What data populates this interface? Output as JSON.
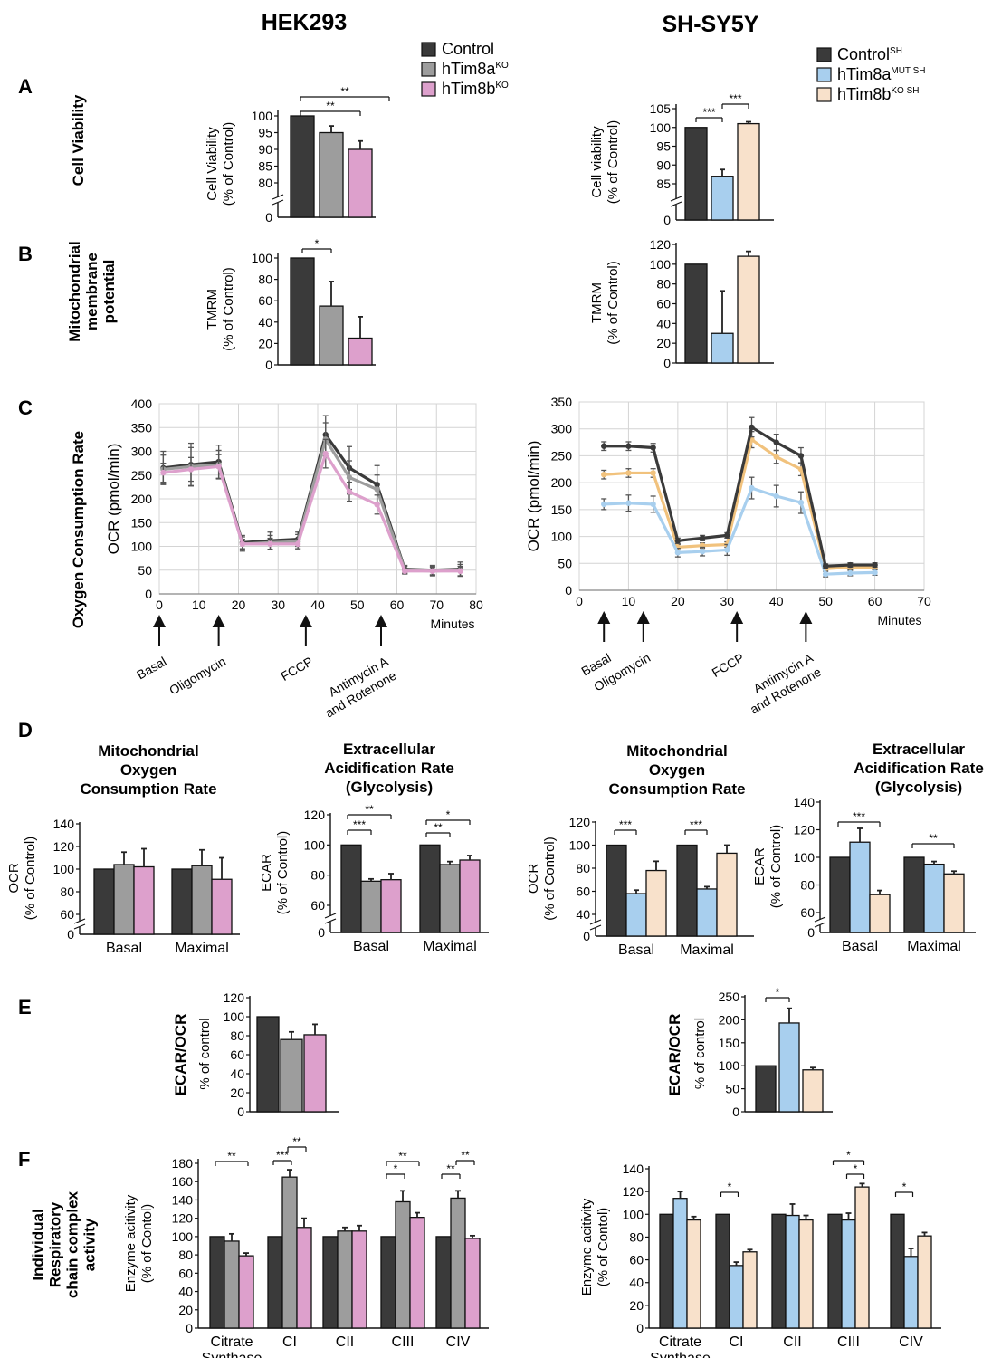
{
  "headers": {
    "left": "HEK293",
    "right": "SH-SY5Y"
  },
  "panels": {
    "A": "A",
    "B": "B",
    "C": "C",
    "D": "D",
    "E": "E",
    "F": "F"
  },
  "row_labels": {
    "A": "Cell Viability",
    "B": [
      "Mitochondrial",
      "membrane",
      "potential"
    ],
    "C": "Oxygen Consumption Rate",
    "F": [
      "Individual",
      "Respiratory",
      "chain complex",
      "activity"
    ]
  },
  "legend_left": [
    {
      "base": "Control",
      "sup": "",
      "color": "#3a3a3a"
    },
    {
      "base": "hTim8a",
      "sup": "KO",
      "color": "#9d9d9d"
    },
    {
      "base": "hTim8b",
      "sup": "KO",
      "color": "#dda0cc"
    }
  ],
  "legend_right": [
    {
      "base": "Control",
      "sup": "SH",
      "color": "#3a3a3a"
    },
    {
      "base": "hTim8a",
      "sup": "MUT SH",
      "color": "#a8cfee"
    },
    {
      "base": "hTim8b",
      "sup": "KO SH",
      "color": "#f8e1cb"
    }
  ],
  "colors": {
    "left": [
      "#3a3a3a",
      "#9d9d9d",
      "#dda0cc"
    ],
    "right": [
      "#3a3a3a",
      "#a8cfee",
      "#f8e1cb"
    ],
    "right_lines": [
      "#3a3a3a",
      "#a8cfee",
      "#f1c27d"
    ]
  },
  "ocr_axis": {
    "ylabel": "OCR (pmol/min)",
    "xlabel": "Minutes"
  },
  "arrows": [
    "Basal",
    "Oligomycin",
    "FCCP",
    [
      "Antimycin A",
      "and Rotenone"
    ]
  ],
  "d_titles": {
    "mito": [
      "Mitochondrial",
      "Oxygen",
      "Consumption Rate"
    ],
    "ecar": [
      "Extracellular",
      "Acidification Rate",
      "(Glycolysis)"
    ]
  },
  "chart_data": [
    {
      "id": "A_left",
      "type": "bar",
      "ylabel": [
        "Cell Viability",
        "(% of Control)"
      ],
      "ylim": [
        80,
        100
      ],
      "yticks": [
        80,
        85,
        90,
        95,
        100
      ],
      "axis_break": true,
      "values": [
        100,
        95,
        90
      ],
      "errors": [
        0,
        2,
        2.5
      ],
      "sig": [
        {
          "a": 0,
          "b": 2,
          "text": "**"
        },
        {
          "a": 0,
          "b": 1,
          "text": "**"
        }
      ]
    },
    {
      "id": "A_right",
      "type": "bar",
      "ylabel": [
        "Cell viability",
        "(% of Control)"
      ],
      "ylim": [
        85,
        105
      ],
      "yticks": [
        85,
        90,
        95,
        100,
        105
      ],
      "axis_break": true,
      "values": [
        100,
        87,
        101
      ],
      "errors": [
        0,
        1.8,
        0.5
      ],
      "sig": [
        {
          "a": 0,
          "b": 1,
          "text": "***"
        },
        {
          "a": 1,
          "b": 2,
          "text": "***"
        }
      ]
    },
    {
      "id": "B_left",
      "type": "bar",
      "ylabel": [
        "TMRM",
        "(% of Control)"
      ],
      "ylim": [
        0,
        100
      ],
      "yticks": [
        0,
        20,
        40,
        60,
        80,
        100
      ],
      "values": [
        100,
        55,
        25
      ],
      "errors": [
        0,
        23,
        20
      ],
      "sig": [
        {
          "a": 0,
          "b": 1,
          "text": "*"
        }
      ]
    },
    {
      "id": "B_right",
      "type": "bar",
      "ylabel": [
        "TMRM",
        "(% of Control)"
      ],
      "ylim": [
        0,
        120
      ],
      "yticks": [
        0,
        20,
        40,
        60,
        80,
        100,
        120
      ],
      "values": [
        100,
        30,
        108
      ],
      "errors": [
        0,
        43,
        5
      ],
      "sig": []
    },
    {
      "id": "C_left",
      "type": "line",
      "ylabel": "OCR (pmol/min)",
      "xlabel": "Minutes",
      "xlim": [
        0,
        80
      ],
      "ylim": [
        0,
        400
      ],
      "xticks": [
        0,
        10,
        20,
        30,
        40,
        50,
        60,
        70,
        80
      ],
      "yticks": [
        0,
        50,
        100,
        150,
        200,
        250,
        300,
        350,
        400
      ],
      "x": [
        1,
        8,
        15,
        21,
        28,
        35,
        42,
        48,
        55,
        62,
        69,
        76
      ],
      "series": [
        {
          "name": "Control",
          "values": [
            265,
            272,
            278,
            108,
            112,
            115,
            335,
            265,
            230,
            52,
            50,
            52
          ],
          "errors": [
            35,
            45,
            35,
            15,
            18,
            15,
            40,
            45,
            40,
            8,
            10,
            15
          ]
        },
        {
          "name": "hTim8a KO",
          "values": [
            262,
            268,
            272,
            105,
            108,
            110,
            325,
            245,
            220,
            50,
            48,
            50
          ],
          "errors": [
            30,
            40,
            30,
            15,
            15,
            15,
            35,
            35,
            30,
            8,
            10,
            12
          ]
        },
        {
          "name": "hTim8b KO",
          "values": [
            255,
            262,
            268,
            105,
            105,
            105,
            295,
            215,
            188,
            48,
            48,
            48
          ],
          "errors": [
            20,
            25,
            25,
            10,
            12,
            10,
            30,
            20,
            20,
            6,
            8,
            10
          ]
        }
      ],
      "arrows_at": [
        0,
        15,
        37,
        56
      ]
    },
    {
      "id": "C_right",
      "type": "line",
      "ylabel": "OCR (pmol/min)",
      "xlabel": "Minutes",
      "xlim": [
        0,
        70
      ],
      "ylim": [
        0,
        350
      ],
      "xticks": [
        0,
        10,
        20,
        30,
        40,
        50,
        60,
        70
      ],
      "yticks": [
        0,
        50,
        100,
        150,
        200,
        250,
        300,
        350
      ],
      "x": [
        5,
        10,
        15,
        20,
        25,
        30,
        35,
        40,
        45,
        50,
        55,
        60
      ],
      "series": [
        {
          "name": "Control SH",
          "values": [
            268,
            268,
            265,
            92,
            97,
            102,
            303,
            275,
            250,
            45,
            47,
            47
          ],
          "errors": [
            8,
            8,
            8,
            5,
            5,
            5,
            18,
            15,
            15,
            4,
            4,
            4
          ]
        },
        {
          "name": "hTim8a MUT SH",
          "values": [
            160,
            162,
            160,
            70,
            72,
            75,
            190,
            175,
            163,
            30,
            32,
            33
          ],
          "errors": [
            10,
            15,
            15,
            8,
            8,
            10,
            20,
            20,
            20,
            5,
            5,
            5
          ]
        },
        {
          "name": "hTim8b KO SH",
          "values": [
            215,
            218,
            218,
            80,
            83,
            85,
            280,
            248,
            225,
            40,
            43,
            42
          ],
          "errors": [
            8,
            8,
            8,
            5,
            5,
            5,
            15,
            12,
            12,
            4,
            4,
            4
          ]
        }
      ],
      "arrows_at": [
        5,
        13,
        32,
        46
      ]
    },
    {
      "id": "D1",
      "type": "bar",
      "title": "Mitochondrial Oxygen Consumption Rate",
      "ylabel": [
        "OCR",
        "(% of Control)"
      ],
      "ylim": [
        60,
        140
      ],
      "yticks": [
        60,
        80,
        100,
        120,
        140
      ],
      "axis_break": true,
      "categories": [
        "Basal",
        "Maximal"
      ],
      "values": [
        [
          100,
          104,
          102
        ],
        [
          100,
          103,
          91
        ]
      ],
      "errors": [
        [
          0,
          11,
          16
        ],
        [
          0,
          14,
          19
        ]
      ],
      "sig": []
    },
    {
      "id": "D2",
      "type": "bar",
      "title": "Extracellular Acidification Rate (Glycolysis)",
      "ylabel": [
        "ECAR",
        "(% of Control)"
      ],
      "ylim": [
        60,
        120
      ],
      "yticks": [
        60,
        80,
        100,
        120
      ],
      "axis_break": true,
      "categories": [
        "Basal",
        "Maximal"
      ],
      "values": [
        [
          100,
          76,
          77
        ],
        [
          100,
          87,
          90
        ]
      ],
      "errors": [
        [
          0,
          1.5,
          4
        ],
        [
          0,
          2,
          3
        ]
      ],
      "sig": [
        {
          "g": 0,
          "a": 0,
          "b": 2,
          "text": "**"
        },
        {
          "g": 0,
          "a": 0,
          "b": 1,
          "text": "***"
        },
        {
          "g": 1,
          "a": 0,
          "b": 2,
          "text": "*"
        },
        {
          "g": 1,
          "a": 0,
          "b": 1,
          "text": "**"
        }
      ]
    },
    {
      "id": "D3",
      "type": "bar",
      "title": "Mitochondrial Oxygen Consumption Rate",
      "ylabel": [
        "OCR",
        "(% of Control)"
      ],
      "ylim": [
        40,
        120
      ],
      "yticks": [
        40,
        60,
        80,
        100,
        120
      ],
      "axis_break": true,
      "categories": [
        "Basal",
        "Maximal"
      ],
      "values": [
        [
          100,
          58,
          78
        ],
        [
          100,
          62,
          93
        ]
      ],
      "errors": [
        [
          0,
          3,
          8
        ],
        [
          0,
          2,
          7
        ]
      ],
      "sig": [
        {
          "g": 0,
          "a": 0,
          "b": 1,
          "text": "***"
        },
        {
          "g": 1,
          "a": 0,
          "b": 1,
          "text": "***"
        }
      ]
    },
    {
      "id": "D4",
      "type": "bar",
      "title": "Extracellular Acidification Rate (Glycolysis)",
      "ylabel": [
        "ECAR",
        "(% of Control)"
      ],
      "ylim": [
        60,
        140
      ],
      "yticks": [
        60,
        80,
        100,
        120,
        140
      ],
      "axis_break": true,
      "categories": [
        "Basal",
        "Maximal"
      ],
      "values": [
        [
          100,
          111,
          73
        ],
        [
          100,
          95,
          88
        ]
      ],
      "errors": [
        [
          0,
          10,
          3
        ],
        [
          0,
          2,
          2
        ]
      ],
      "sig": [
        {
          "g": 0,
          "a": 0,
          "b": 2,
          "text": "***"
        },
        {
          "g": 1,
          "a": 0,
          "b": 2,
          "text": "**"
        }
      ]
    },
    {
      "id": "E_left",
      "type": "bar",
      "title": "ECAR/OCR",
      "ylabel": [
        "% of control"
      ],
      "ylim": [
        0,
        120
      ],
      "yticks": [
        0,
        20,
        40,
        60,
        80,
        100,
        120
      ],
      "values": [
        100,
        76,
        81
      ],
      "errors": [
        0,
        8,
        11
      ],
      "sig": []
    },
    {
      "id": "E_right",
      "type": "bar",
      "title": "ECAR/OCR",
      "ylabel": [
        "% of control"
      ],
      "ylim": [
        0,
        250
      ],
      "yticks": [
        0,
        50,
        100,
        150,
        200,
        250
      ],
      "values": [
        100,
        193,
        91
      ],
      "errors": [
        0,
        32,
        5
      ],
      "sig": [
        {
          "a": 0,
          "b": 1,
          "text": "*"
        }
      ]
    },
    {
      "id": "F_left",
      "type": "bar",
      "ylabel": [
        "Enzyme acitivity",
        "(% of Contol)"
      ],
      "ylim": [
        0,
        180
      ],
      "yticks": [
        0,
        20,
        40,
        60,
        80,
        100,
        120,
        140,
        160,
        180
      ],
      "categories": [
        [
          "Citrate",
          "Synthase"
        ],
        [
          "CI"
        ],
        [
          "CII"
        ],
        [
          "CIII"
        ],
        [
          "CIV"
        ]
      ],
      "values": [
        [
          100,
          95,
          79
        ],
        [
          100,
          165,
          110
        ],
        [
          100,
          106,
          106
        ],
        [
          100,
          138,
          121
        ],
        [
          100,
          142,
          98
        ]
      ],
      "errors": [
        [
          0,
          8,
          3
        ],
        [
          0,
          8,
          10
        ],
        [
          0,
          4,
          6
        ],
        [
          0,
          12,
          5
        ],
        [
          0,
          8,
          3
        ]
      ],
      "sig": [
        {
          "g": 0,
          "a": 0,
          "b": 2,
          "text": "**"
        },
        {
          "g": 1,
          "a": 0,
          "b": 1,
          "text": "***"
        },
        {
          "g": 1,
          "a": 1,
          "b": 2,
          "text": "**"
        },
        {
          "g": 3,
          "a": 0,
          "b": 2,
          "text": "**"
        },
        {
          "g": 3,
          "a": 0,
          "b": 1,
          "text": "*"
        },
        {
          "g": 4,
          "a": 0,
          "b": 1,
          "text": "**"
        },
        {
          "g": 4,
          "a": 1,
          "b": 2,
          "text": "**"
        }
      ]
    },
    {
      "id": "F_right",
      "type": "bar",
      "ylabel": [
        "Enzyme acitivity",
        "(% of Contol)"
      ],
      "ylim": [
        0,
        140
      ],
      "yticks": [
        0,
        20,
        40,
        60,
        80,
        100,
        120,
        140
      ],
      "categories": [
        [
          "Citrate",
          "Synthase"
        ],
        [
          "CI"
        ],
        [
          "CII"
        ],
        [
          "CIII"
        ],
        [
          "CIV"
        ]
      ],
      "values": [
        [
          100,
          114,
          95
        ],
        [
          100,
          55,
          67
        ],
        [
          100,
          99,
          95
        ],
        [
          100,
          95,
          124
        ],
        [
          100,
          63,
          81
        ]
      ],
      "errors": [
        [
          0,
          6,
          3
        ],
        [
          0,
          3,
          2
        ],
        [
          0,
          10,
          4
        ],
        [
          0,
          6,
          3
        ],
        [
          0,
          7,
          3
        ]
      ],
      "sig": [
        {
          "g": 1,
          "a": 0,
          "b": 1,
          "text": "*"
        },
        {
          "g": 3,
          "a": 0,
          "b": 2,
          "text": "*"
        },
        {
          "g": 3,
          "a": 1,
          "b": 2,
          "text": "*"
        },
        {
          "g": 4,
          "a": 0,
          "b": 1,
          "text": "*"
        }
      ]
    }
  ]
}
